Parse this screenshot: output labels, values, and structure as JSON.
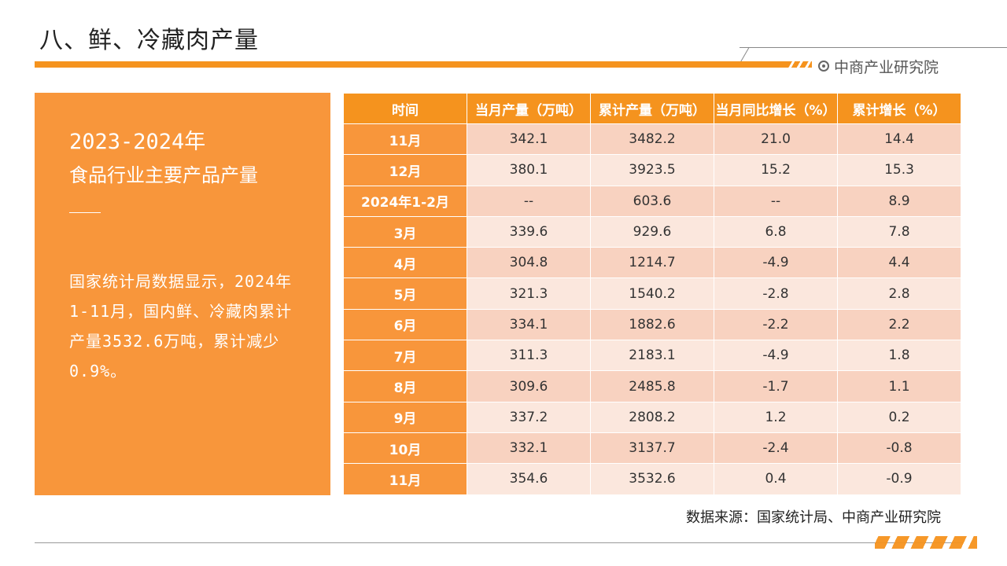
{
  "page": {
    "title": "八、鲜、冷藏肉产量",
    "brand": "中商产业研究院"
  },
  "panel": {
    "heading_line1": "2023-2024年",
    "heading_line2": "食品行业主要产品产量",
    "body": "国家统计局数据显示，2024年1-11月，国内鲜、冷藏肉累计产量3532.6万吨，累计减少0.9%。"
  },
  "table": {
    "headers": [
      "时间",
      "当月产量（万吨）",
      "累计产量（万吨）",
      "当月同比增长（%）",
      "累计增长（%）"
    ],
    "rows": [
      [
        "11月",
        "342.1",
        "3482.2",
        "21.0",
        "14.4"
      ],
      [
        "12月",
        "380.1",
        "3923.5",
        "15.2",
        "15.3"
      ],
      [
        "2024年1-2月",
        "--",
        "603.6",
        "--",
        "8.9"
      ],
      [
        "3月",
        "339.6",
        "929.6",
        "6.8",
        "7.8"
      ],
      [
        "4月",
        "304.8",
        "1214.7",
        "-4.9",
        "4.4"
      ],
      [
        "5月",
        "321.3",
        "1540.2",
        "-2.8",
        "2.8"
      ],
      [
        "6月",
        "334.1",
        "1882.6",
        "-2.2",
        "2.2"
      ],
      [
        "7月",
        "311.3",
        "2183.1",
        "-4.9",
        "1.8"
      ],
      [
        "8月",
        "309.6",
        "2485.8",
        "-1.7",
        "1.1"
      ],
      [
        "9月",
        "337.2",
        "2808.2",
        "1.2",
        "0.2"
      ],
      [
        "10月",
        "332.1",
        "3137.7",
        "-2.4",
        "-0.8"
      ],
      [
        "11月",
        "354.6",
        "3532.6",
        "0.4",
        "-0.9"
      ]
    ]
  },
  "footer": {
    "source": "数据来源：国家统计局、中商产业研究院"
  },
  "colors": {
    "accent": "#f5931e",
    "panel": "#f8963b",
    "row_odd": "#f8d2c0",
    "row_even": "#fbe7dd"
  }
}
